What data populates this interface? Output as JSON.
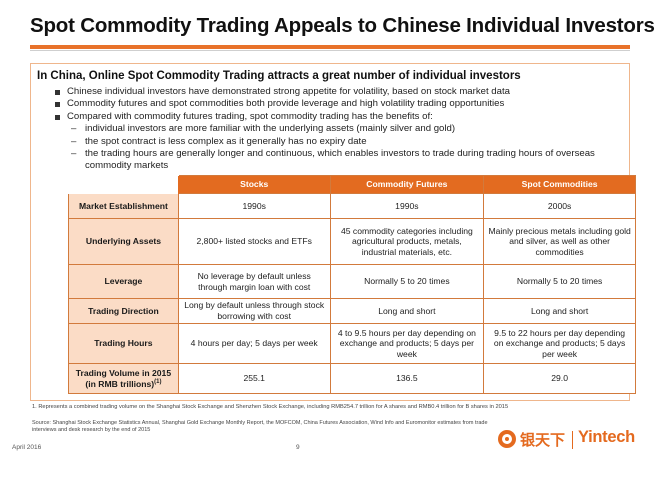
{
  "slide": {
    "title": "Spot Commodity Trading Appeals to Chinese Individual Investors",
    "subtitle": "In China, Online Spot Commodity Trading attracts a great number of individual investors",
    "bullets": [
      "Chinese individual investors have demonstrated strong appetite for volatility, based on stock market data",
      "Commodity futures and spot commodities both provide leverage and high volatility trading opportunities",
      "Compared with commodity futures trading, spot commodity trading has the benefits of:"
    ],
    "sub_bullets": [
      "individual investors are more familiar with the underlying assets (mainly silver and gold)",
      "the spot contract is less complex as it generally has no expiry date",
      "the trading hours are generally longer and continuous, which enables investors to trade during trading hours of overseas commodity markets"
    ],
    "table": {
      "columns": [
        "Stocks",
        "Commodity Futures",
        "Spot Commodities"
      ],
      "rows": [
        {
          "label": "Market Establishment",
          "cells": [
            "1990s",
            "1990s",
            "2000s"
          ]
        },
        {
          "label": "Underlying Assets",
          "cells": [
            "2,800+ listed stocks and ETFs",
            "45 commodity categories including agricultural products, metals, industrial materials, etc.",
            "Mainly precious metals including gold and silver, as well as other commodities"
          ]
        },
        {
          "label": "Leverage",
          "cells": [
            "No leverage by default unless through margin loan with cost",
            "Normally 5 to 20 times",
            "Normally 5 to 20 times"
          ]
        },
        {
          "label": "Trading Direction",
          "cells": [
            "Long by default unless through stock borrowing with cost",
            "Long and short",
            "Long and short"
          ]
        },
        {
          "label": "Trading Hours",
          "cells": [
            "4 hours per day; 5 days per week",
            "4 to 9.5 hours per day depending on exchange and products; 5 days per week",
            "9.5 to 22 hours per day depending on exchange and products; 5 days per week"
          ]
        },
        {
          "label": "Trading Volume in 2015 (in RMB trillions)",
          "label_sup": "(1)",
          "cells": [
            "255.1",
            "136.5",
            "29.0"
          ]
        }
      ]
    },
    "footnote": "1. Represents a combined trading volume on the Shanghai Stock Exchange and Shenzhen Stock Exchange, including RMB254.7 trillion for A shares and RMB0.4 trillion for B shares in 2015",
    "source": "Source: Shanghai Stock Exchange Statistics Annual, Shanghai Gold Exchange Monthly Report, the MOFCOM, China Futures Association, Wind Info and Euromonitor estimates from trade interviews and desk research by the end of 2015",
    "date": "April 2016",
    "page_number": "9",
    "logo": {
      "chinese": "银天下",
      "english": "Yintech",
      "color": "#e46a1f"
    },
    "colors": {
      "accent": "#e8722a",
      "header_fill": "#e36b20",
      "row_label_fill": "#fbdcc6"
    }
  }
}
